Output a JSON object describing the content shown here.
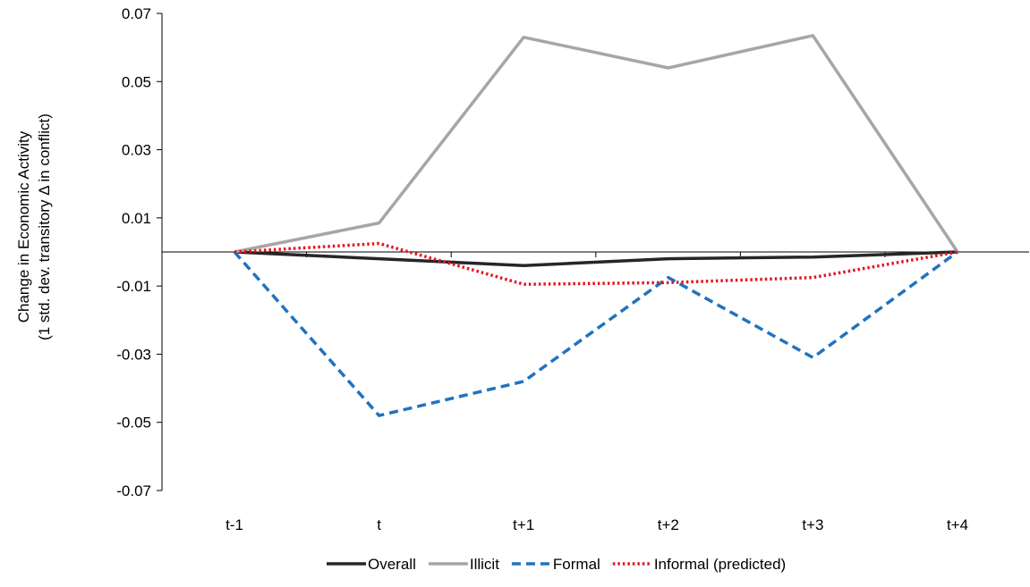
{
  "chart_data": {
    "type": "line",
    "categories": [
      "t-1",
      "t",
      "t+1",
      "t+2",
      "t+3",
      "t+4"
    ],
    "ylabel_lines": [
      "Change in Economic Activity",
      "(1 std. dev.  transitory Δ in conflict)"
    ],
    "ylim": [
      -0.07,
      0.07
    ],
    "yticks": [
      "0.07",
      "0.05",
      "0.03",
      "0.01",
      "-0.01",
      "-0.03",
      "-0.05",
      "-0.07"
    ],
    "ytick_values": [
      0.07,
      0.05,
      0.03,
      0.01,
      -0.01,
      -0.03,
      -0.05,
      -0.07
    ],
    "grid": false,
    "legend_position": "bottom",
    "series": [
      {
        "name": "Overall",
        "values": [
          0,
          -0.002,
          -0.004,
          -0.002,
          -0.0015,
          0
        ],
        "color": "#262626",
        "style": "solid"
      },
      {
        "name": "Illicit",
        "values": [
          0,
          0.0085,
          0.063,
          0.054,
          0.0635,
          0
        ],
        "color": "#a6a6a6",
        "style": "solid"
      },
      {
        "name": "Formal",
        "values": [
          0,
          -0.048,
          -0.038,
          -0.0075,
          -0.031,
          0
        ],
        "color": "#1f73c1",
        "style": "dashed"
      },
      {
        "name": "Informal (predicted)",
        "values": [
          0,
          0.0025,
          -0.0095,
          -0.009,
          -0.0075,
          0
        ],
        "color": "#e6141e",
        "style": "dotted"
      }
    ]
  }
}
